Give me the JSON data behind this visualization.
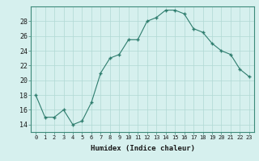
{
  "x": [
    0,
    1,
    2,
    3,
    4,
    5,
    6,
    7,
    8,
    9,
    10,
    11,
    12,
    13,
    14,
    15,
    16,
    17,
    18,
    19,
    20,
    21,
    22,
    23
  ],
  "y": [
    18,
    15,
    15,
    16,
    14,
    14.5,
    17,
    21,
    23,
    23.5,
    25.5,
    25.5,
    28,
    28.5,
    29.5,
    29.5,
    29,
    27,
    26.5,
    25,
    24,
    23.5,
    21.5,
    20.5
  ],
  "line_color": "#2e7d6e",
  "marker_color": "#2e7d6e",
  "bg_color": "#d6f0ee",
  "grid_color": "#b0d8d4",
  "xlabel": "Humidex (Indice chaleur)",
  "ylim": [
    13,
    30
  ],
  "yticks": [
    14,
    16,
    18,
    20,
    22,
    24,
    26,
    28
  ],
  "xlim": [
    -0.5,
    23.5
  ],
  "xticks": [
    0,
    1,
    2,
    3,
    4,
    5,
    6,
    7,
    8,
    9,
    10,
    11,
    12,
    13,
    14,
    15,
    16,
    17,
    18,
    19,
    20,
    21,
    22,
    23
  ],
  "xtick_labels": [
    "0",
    "1",
    "2",
    "3",
    "4",
    "5",
    "6",
    "7",
    "8",
    "9",
    "10",
    "11",
    "12",
    "13",
    "14",
    "15",
    "16",
    "17",
    "18",
    "19",
    "20",
    "21",
    "22",
    "23"
  ]
}
